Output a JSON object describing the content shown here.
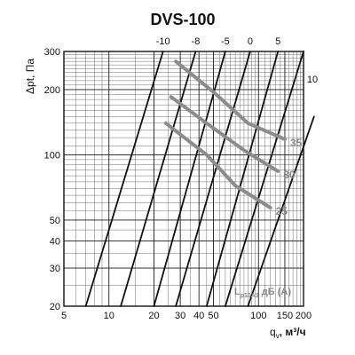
{
  "chart_data": {
    "type": "line",
    "title": "DVS-100",
    "xlabel": "q",
    "xlabel_sub": "v",
    "xlabel_unit": ", м³/ч",
    "ylabel": "Δpt, Па",
    "x_scale": "log",
    "y_scale": "log",
    "xlim": [
      5,
      200
    ],
    "ylim": [
      20,
      300
    ],
    "x_ticks": [
      5,
      10,
      20,
      30,
      40,
      50,
      100,
      150,
      200
    ],
    "x_tick_labels": [
      "5",
      "10",
      "20",
      "30",
      "40",
      "50",
      "100",
      "150",
      "200"
    ],
    "y_ticks": [
      20,
      30,
      40,
      50,
      100,
      200,
      300
    ],
    "y_tick_labels": [
      "20",
      "30",
      "40",
      "50",
      "100",
      "200",
      "300"
    ],
    "grid": true,
    "fan_lines": [
      {
        "name": "-10",
        "points": [
          [
            7,
            20
          ],
          [
            23,
            300
          ]
        ]
      },
      {
        "name": "-8",
        "points": [
          [
            12,
            20
          ],
          [
            38,
            300
          ]
        ]
      },
      {
        "name": "-5",
        "points": [
          [
            20,
            20
          ],
          [
            60,
            300
          ]
        ]
      },
      {
        "name": "0",
        "points": [
          [
            28,
            20
          ],
          [
            88,
            300
          ]
        ]
      },
      {
        "name": "5",
        "points": [
          [
            45,
            20
          ],
          [
            135,
            300
          ]
        ]
      },
      {
        "name": "10",
        "points": [
          [
            60,
            20
          ],
          [
            200,
            300
          ]
        ]
      },
      {
        "name": "",
        "points": [
          [
            85,
            20
          ],
          [
            235,
            150
          ]
        ]
      }
    ],
    "noise_curves": [
      {
        "name": "35",
        "points": [
          [
            28,
            270
          ],
          [
            50,
            195
          ],
          [
            85,
            140
          ],
          [
            150,
            118
          ]
        ]
      },
      {
        "name": "30",
        "points": [
          [
            26,
            185
          ],
          [
            45,
            140
          ],
          [
            80,
            105
          ],
          [
            135,
            84
          ]
        ]
      },
      {
        "name": "25",
        "points": [
          [
            24,
            140
          ],
          [
            45,
            100
          ],
          [
            70,
            72
          ],
          [
            120,
            57
          ]
        ]
      }
    ],
    "legend": {
      "main": "L",
      "sub": "p10A1",
      "unit": " дБ (A)"
    }
  }
}
